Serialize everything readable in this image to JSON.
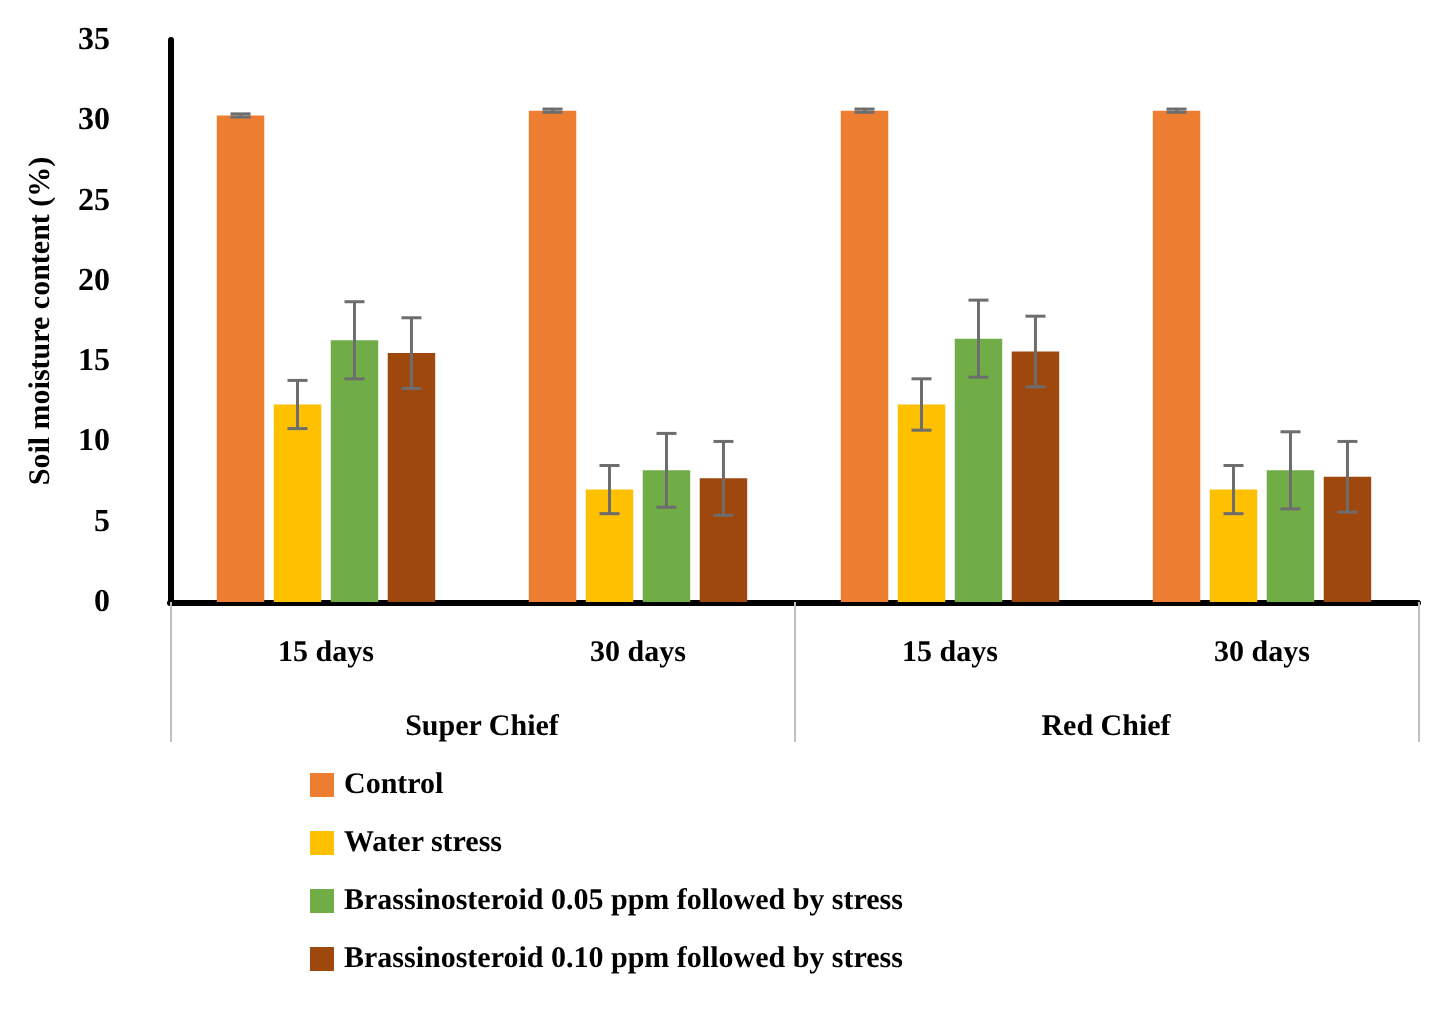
{
  "chart_data": {
    "type": "bar",
    "ylabel": "Soil moisture content (%)",
    "categories": [
      "15 days",
      "30 days",
      "15 days",
      "30 days"
    ],
    "annotations": [
      "Super Chief",
      "Red Chief"
    ],
    "series": [
      {
        "name": "Control",
        "color": "#ed7d31",
        "values": [
          30.3,
          30.6,
          30.6,
          30.6
        ],
        "errors": [
          0.1,
          0.1,
          0.1,
          0.1
        ]
      },
      {
        "name": "Water stress",
        "color": "#ffc000",
        "values": [
          12.3,
          7.0,
          12.3,
          7.0
        ],
        "errors": [
          1.5,
          1.5,
          1.6,
          1.5
        ]
      },
      {
        "name": "Brassinosteroid 0.05 ppm followed by stress",
        "color": "#70ad47",
        "values": [
          16.3,
          8.2,
          16.4,
          8.2
        ],
        "errors": [
          2.4,
          2.3,
          2.4,
          2.4
        ]
      },
      {
        "name": "Brassinosteroid 0.10 ppm followed by stress",
        "color": "#9e480e",
        "values": [
          15.5,
          7.7,
          15.6,
          7.8
        ],
        "errors": [
          2.2,
          2.3,
          2.2,
          2.2
        ]
      }
    ],
    "ylim": [
      0,
      35
    ],
    "yticks": [
      0,
      5,
      10,
      15,
      20,
      25,
      30,
      35
    ],
    "grid": false,
    "legend": "bottom"
  }
}
